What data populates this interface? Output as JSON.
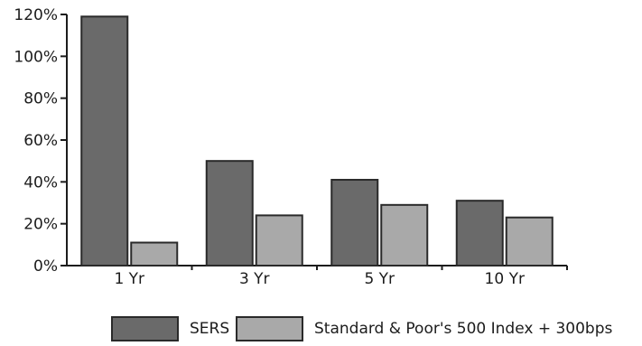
{
  "chart_data": {
    "type": "bar",
    "categories": [
      "1 Yr",
      "3 Yr",
      "5 Yr",
      "10 Yr"
    ],
    "series": [
      {
        "name": "SERS",
        "values": [
          119,
          50,
          41,
          31
        ],
        "color": "#6a6a6a"
      },
      {
        "name": "Standard & Poor's 500 Index + 300bps",
        "values": [
          11,
          24,
          29,
          23
        ],
        "color": "#a9a9a9"
      }
    ],
    "y_ticks": [
      "0%",
      "20%",
      "40%",
      "60%",
      "80%",
      "100%",
      "120%"
    ],
    "ylim": [
      0,
      120
    ],
    "unit": "%",
    "grid": false,
    "legend_position": "bottom"
  }
}
